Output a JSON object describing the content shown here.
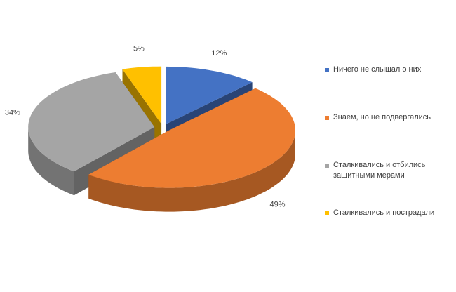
{
  "chart_data": {
    "type": "pie3d",
    "categories": [
      "Ничего не слышал о них",
      "Знаем, но не подвергались",
      "Сталкивались и отбились защитными мерами",
      "Сталкивались и пострадали"
    ],
    "values": [
      12,
      49,
      34,
      5
    ],
    "value_labels": [
      "12%",
      "49%",
      "34%",
      "5%"
    ],
    "colors": [
      "#4472c4",
      "#ed7d31",
      "#a5a5a5",
      "#ffc000"
    ],
    "legend": "right"
  }
}
